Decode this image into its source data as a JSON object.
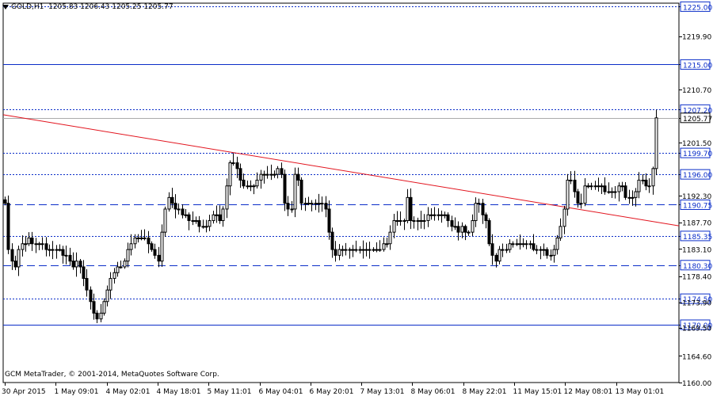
{
  "header": {
    "symbol_label": "GOLD,H1",
    "ohlc_label": "1205.83 1206.43 1205.25 1205.77"
  },
  "footer": {
    "copyright": "GCM MetaTrader, © 2001-2014, MetaQuotes Software Corp."
  },
  "chart_data": {
    "type": "candlestick",
    "symbol": "GOLD",
    "timeframe": "H1",
    "ylim": [
      1160.0,
      1225.6
    ],
    "y_ticks": [
      "1225.00",
      "1219.90",
      "1215.00",
      "1210.70",
      "1207.20",
      "1205.77",
      "1201.50",
      "1199.70",
      "1196.00",
      "1192.30",
      "1190.75",
      "1187.70",
      "1185.35",
      "1183.10",
      "1180.30",
      "1178.40",
      "1174.50",
      "1173.90",
      "1170.00",
      "1169.50",
      "1164.60",
      "1160.00"
    ],
    "x_ticks": [
      "30 Apr 2015",
      "1 May 09:01",
      "4 May 02:01",
      "4 May 18:01",
      "5 May 11:01",
      "6 May 04:01",
      "6 May 20:01",
      "7 May 13:01",
      "8 May 06:01",
      "8 May 22:01",
      "11 May 15:01",
      "12 May 08:01",
      "13 May 01:01"
    ],
    "horizontal_levels": [
      {
        "value": 1225.0,
        "style": "dotted",
        "label": "1225.00"
      },
      {
        "value": 1215.0,
        "style": "solid",
        "label": "1215.00"
      },
      {
        "value": 1207.2,
        "style": "dotted",
        "label": "1207.20"
      },
      {
        "value": 1199.7,
        "style": "dotted",
        "label": "1199.70"
      },
      {
        "value": 1196.0,
        "style": "dotted",
        "label": "1196.00"
      },
      {
        "value": 1190.75,
        "style": "dashed",
        "label": "1190.75"
      },
      {
        "value": 1185.35,
        "style": "dotted",
        "label": "1185.35"
      },
      {
        "value": 1180.3,
        "style": "dashed",
        "label": "1180.30"
      },
      {
        "value": 1174.5,
        "style": "dotted",
        "label": "1174.50"
      },
      {
        "value": 1170.0,
        "style": "solid",
        "label": "1170.00"
      }
    ],
    "current_price": 1205.77,
    "trendline": {
      "start_price": 1206.3,
      "end_price": 1187.1
    },
    "closes": [
      1191,
      1183,
      1181,
      1180,
      1183,
      1184,
      1184,
      1185,
      1184,
      1184,
      1184,
      1184,
      1183,
      1183,
      1183,
      1183,
      1183,
      1182,
      1182,
      1181,
      1180,
      1181,
      1180,
      1178,
      1176,
      1174,
      1172,
      1171,
      1172,
      1174,
      1176,
      1178,
      1179,
      1180,
      1180,
      1181,
      1183,
      1184,
      1185,
      1185,
      1185,
      1185,
      1184,
      1183,
      1182,
      1181,
      1186,
      1190,
      1192,
      1191,
      1190,
      1190,
      1189,
      1189,
      1188,
      1188,
      1188,
      1187,
      1187,
      1187,
      1188,
      1189,
      1189,
      1188,
      1190,
      1194,
      1198,
      1198,
      1197,
      1195,
      1194,
      1194,
      1194,
      1194,
      1195,
      1196,
      1196,
      1196,
      1196,
      1196,
      1197,
      1196,
      1191,
      1190,
      1190,
      1196,
      1195,
      1191,
      1191,
      1191,
      1191,
      1191,
      1191,
      1191,
      1190,
      1186,
      1183,
      1182,
      1183,
      1183,
      1183,
      1183,
      1183,
      1183,
      1183,
      1183,
      1183,
      1183,
      1183,
      1183,
      1183,
      1184,
      1184,
      1186,
      1188,
      1188,
      1188,
      1188,
      1192,
      1188,
      1188,
      1188,
      1188,
      1188,
      1189,
      1189,
      1189,
      1189,
      1189,
      1189,
      1188,
      1187,
      1187,
      1186,
      1187,
      1186,
      1186,
      1188,
      1191,
      1191,
      1189,
      1188,
      1184,
      1182,
      1181,
      1183,
      1183,
      1183,
      1184,
      1184,
      1184,
      1184,
      1184,
      1184,
      1184,
      1183,
      1183,
      1183,
      1183,
      1182,
      1182,
      1183,
      1185,
      1187,
      1190,
      1195,
      1195,
      1193,
      1191,
      1191,
      1194,
      1194,
      1194,
      1194,
      1194,
      1194,
      1193,
      1193,
      1193,
      1193,
      1194,
      1194,
      1192,
      1192,
      1192,
      1193,
      1195,
      1195,
      1194,
      1194,
      1197,
      1205.77
    ]
  }
}
